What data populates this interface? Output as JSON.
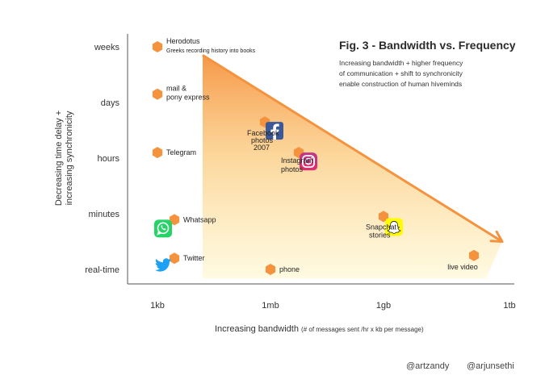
{
  "figure": {
    "title": "Fig. 3 - Bandwidth vs. Frequency",
    "subtitle_lines": [
      "Increasing bandwidth + higher frequency",
      "of communication + shift to synchronicity",
      "enable construction of human hiveminds"
    ],
    "credits": [
      "@artzandy",
      "@arjunsethi"
    ]
  },
  "chart_data": {
    "type": "scatter",
    "title": "Fig. 3 - Bandwidth vs. Frequency",
    "xlabel": "Increasing bandwidth",
    "xlabel_note": "(# of messages sent /hr x kb per message)",
    "ylabel": [
      "Decreasing time delay +",
      "increasing synchronicity"
    ],
    "x_categories": [
      "1kb",
      "1mb",
      "1gb",
      "1tb"
    ],
    "y_categories": [
      "weeks",
      "days",
      "hours",
      "minutes",
      "real-time"
    ],
    "grid": false,
    "accent_color": "#f5923e",
    "points": [
      {
        "label": "Herodotus",
        "sublabel": "Greeks recording history into books",
        "x": 0,
        "y": 0,
        "icon": "hexagon"
      },
      {
        "label": "mail &",
        "sublabel": "pony express",
        "x": 0,
        "y": 0.85,
        "icon": "hexagon"
      },
      {
        "label": "Telegram",
        "sublabel": "",
        "x": 0,
        "y": 1.9,
        "icon": "hexagon"
      },
      {
        "label": "Whatsapp",
        "sublabel": "",
        "x": 0.15,
        "y": 3.15,
        "icon": "whatsapp-logo"
      },
      {
        "label": "Twitter",
        "sublabel": "",
        "x": 0.15,
        "y": 3.8,
        "icon": "twitter-logo"
      },
      {
        "label": "Facebook",
        "sublabel": "photos 2007",
        "x": 0.95,
        "y": 1.35,
        "icon": "facebook-logo"
      },
      {
        "label": "Instagram",
        "sublabel": "photos",
        "x": 1.25,
        "y": 1.9,
        "icon": "instagram-logo"
      },
      {
        "label": "phone",
        "sublabel": "",
        "x": 1.0,
        "y": 4.0,
        "icon": "hexagon"
      },
      {
        "label": "Snapchat",
        "sublabel": "stories",
        "x": 2.0,
        "y": 3.05,
        "icon": "snapchat-logo"
      },
      {
        "label": "live video",
        "sublabel": "",
        "x": 2.8,
        "y": 3.75,
        "icon": "hexagon"
      }
    ],
    "trend": {
      "from": {
        "x": 0.4,
        "y": 0.15
      },
      "to": {
        "x": 3.05,
        "y": 3.5
      }
    }
  }
}
